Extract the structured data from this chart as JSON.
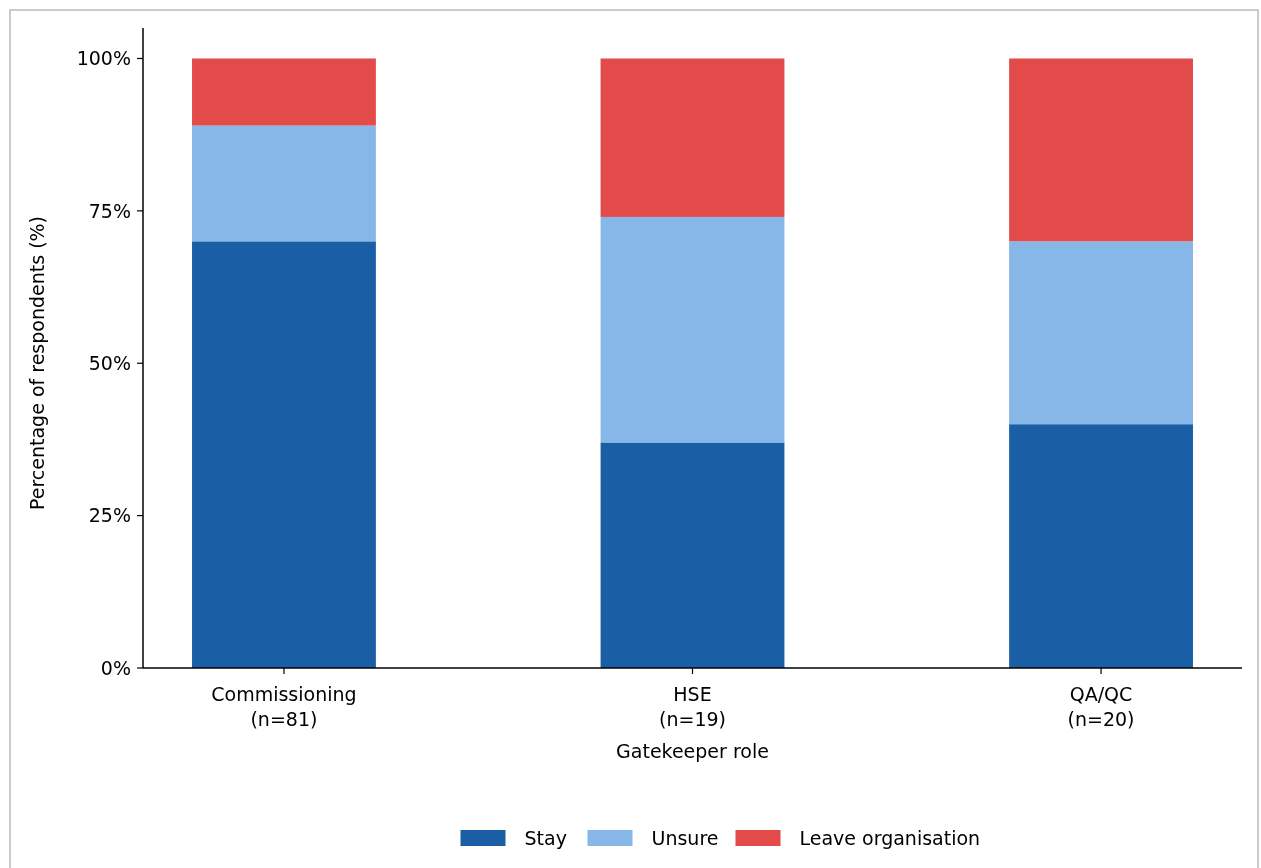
{
  "chart_data": {
    "type": "bar",
    "stacked": true,
    "xlabel": "Gatekeeper role",
    "ylabel": "Percentage of respondents (%)",
    "categories": [
      "Commissioning\n(n=81)",
      "HSE\n(n=19)",
      "QA/QC\n(n=20)"
    ],
    "series": [
      {
        "name": "Stay",
        "color": "#1a5fa6",
        "values": [
          70,
          37,
          40
        ]
      },
      {
        "name": "Unsure",
        "color": "#87b6e9",
        "values": [
          19,
          37,
          30
        ]
      },
      {
        "name": "Leave organisation",
        "color": "#e34b4b",
        "values": [
          11,
          26,
          30
        ]
      }
    ],
    "ylim": [
      0,
      105
    ],
    "yticks": [
      {
        "value": 0,
        "label": "0%"
      },
      {
        "value": 25,
        "label": "25%"
      },
      {
        "value": 50,
        "label": "50%"
      },
      {
        "value": 75,
        "label": "75%"
      },
      {
        "value": 100,
        "label": "100%"
      }
    ],
    "grid": false,
    "legend": "bottom"
  }
}
